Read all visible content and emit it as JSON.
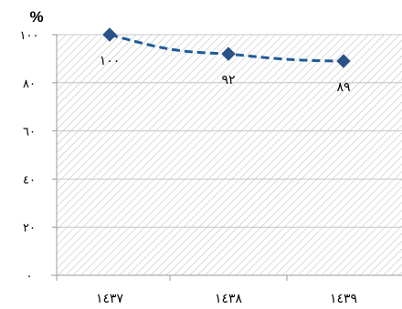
{
  "chart_data": {
    "type": "line",
    "unit_label": "%",
    "categories": [
      "١٤٣٧",
      "١٤٣٨",
      "١٤٣٩"
    ],
    "series": [
      {
        "values": [
          100,
          92,
          89
        ],
        "labels": [
          "١٠٠",
          "٩٢",
          "٨٩"
        ]
      }
    ],
    "ylim": [
      0,
      100
    ],
    "yticks": [
      0,
      20,
      40,
      60,
      80,
      100
    ],
    "ytick_labels": [
      "٠",
      "٢٠",
      "٤٠",
      "٦٠",
      "٨٠",
      "١٠٠"
    ],
    "grid": true,
    "line_style": "dashed",
    "marker": "diamond",
    "colors": {
      "series": "#1f5b99",
      "marker": "#2a5287",
      "hatch": "#b8b8b8",
      "axis": "#9a9a9a"
    }
  }
}
